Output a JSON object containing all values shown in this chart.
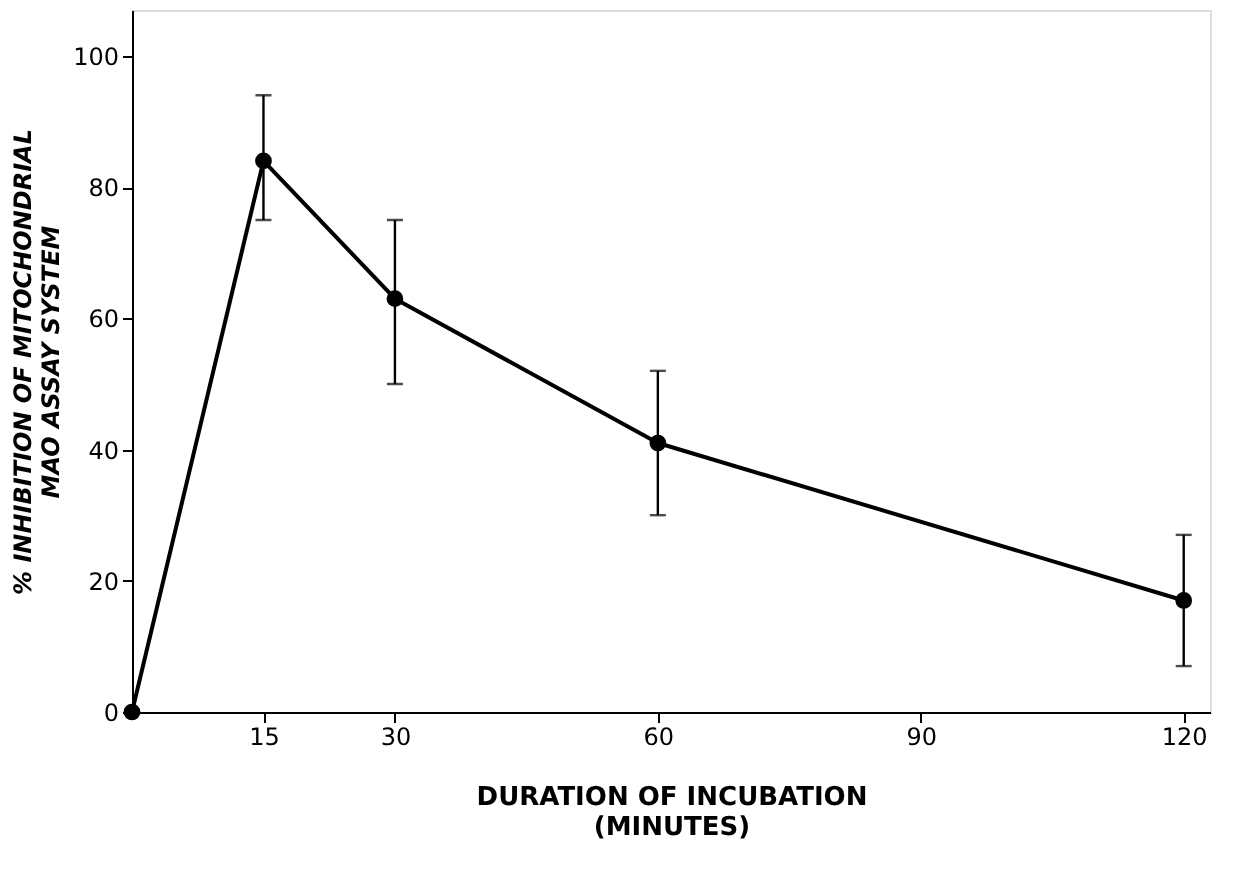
{
  "chart_data": {
    "type": "line",
    "xlabel": "DURATION OF INCUBATION\n(MINUTES)",
    "ylabel": "% INHIBITION OF MITOCHONDRIAL\nMAO ASSAY SYSTEM",
    "x": [
      0,
      15,
      30,
      60,
      120
    ],
    "series": [
      {
        "color": "#000000",
        "values": [
          0,
          84,
          63,
          41,
          17
        ],
        "errors": [
          null,
          [
            75,
            94
          ],
          [
            50,
            75
          ],
          [
            30,
            52
          ],
          [
            7,
            27
          ]
        ]
      }
    ],
    "xlim": [
      0,
      123
    ],
    "xticks": [
      15,
      30,
      60,
      90,
      120
    ],
    "ylim": [
      0,
      107
    ],
    "yticks": [
      0,
      20,
      40,
      60,
      80,
      100
    ],
    "grid": false,
    "marker": "circle",
    "line_style": "solid"
  }
}
